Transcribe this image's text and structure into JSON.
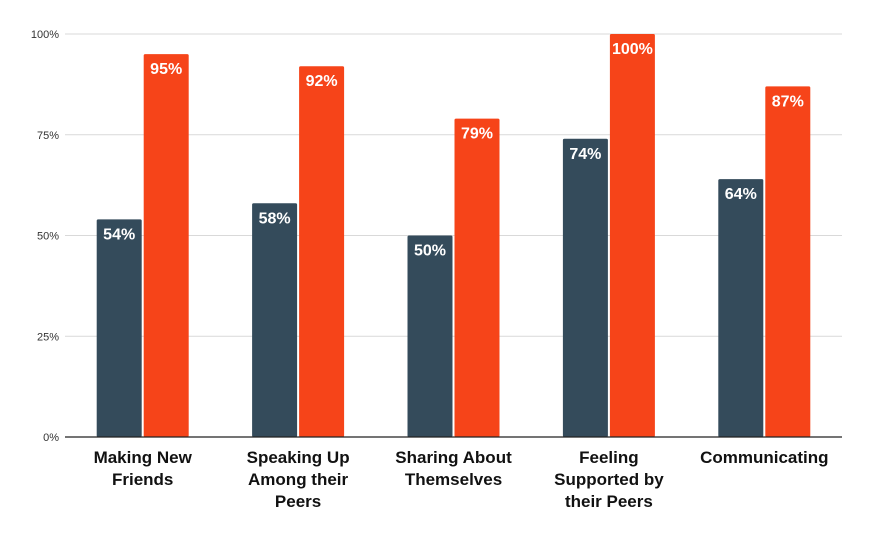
{
  "chart_data": {
    "type": "bar",
    "title": "",
    "xlabel": "",
    "ylabel": "",
    "ylim": [
      0,
      100
    ],
    "grid": true,
    "yticks": [
      {
        "value": 0,
        "label": "0%"
      },
      {
        "value": 25,
        "label": "25%"
      },
      {
        "value": 50,
        "label": "50%"
      },
      {
        "value": 75,
        "label": "75%"
      },
      {
        "value": 100,
        "label": "100%"
      }
    ],
    "categories": [
      [
        "Making New",
        "Friends"
      ],
      [
        "Speaking Up",
        "Among their",
        "Peers"
      ],
      [
        "Sharing About",
        "Themselves"
      ],
      [
        "Feeling",
        "Supported by",
        "their Peers"
      ],
      [
        "Communicating"
      ]
    ],
    "series": [
      {
        "name": "series-1",
        "color": "#344b5b",
        "values": [
          54,
          58,
          50,
          74,
          64
        ],
        "labels": [
          "54%",
          "58%",
          "50%",
          "74%",
          "64%"
        ]
      },
      {
        "name": "series-2",
        "color": "#f64419",
        "values": [
          95,
          92,
          79,
          100,
          87
        ],
        "labels": [
          "95%",
          "92%",
          "79%",
          "100%",
          "87%"
        ]
      }
    ]
  }
}
